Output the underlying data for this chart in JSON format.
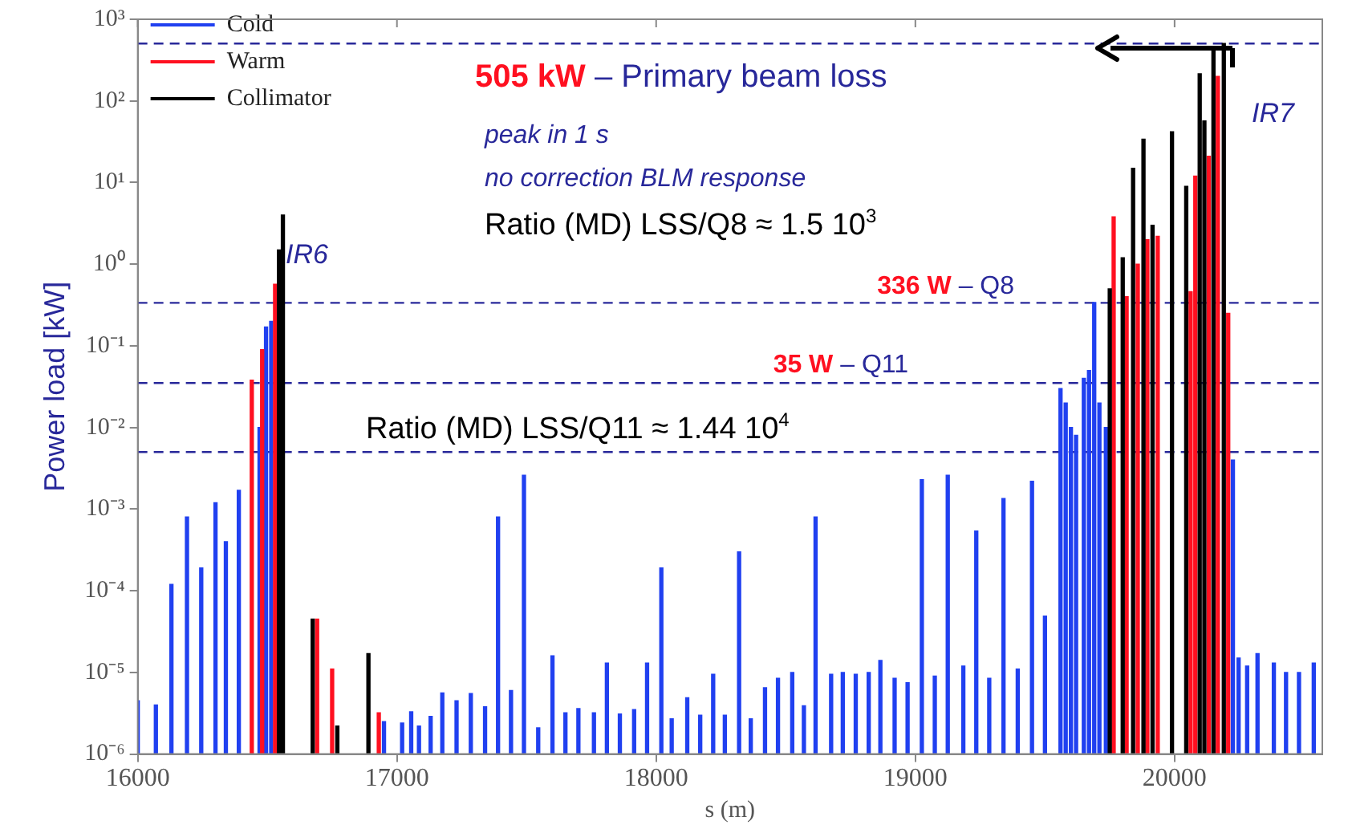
{
  "chart_data": {
    "type": "bar",
    "xlabel": "s (m)",
    "ylabel": "Power load [kW]",
    "xlim": [
      16000,
      20570
    ],
    "xticks": [
      16000,
      17000,
      18000,
      19000,
      20000
    ],
    "ylim": [
      1e-06,
      1000
    ],
    "log": "y",
    "yticks": [
      {
        "value": 1e-06,
        "label": "10⁻⁶"
      },
      {
        "value": 1e-05,
        "label": "10⁻⁵"
      },
      {
        "value": 0.0001,
        "label": "10⁻⁴"
      },
      {
        "value": 0.001,
        "label": "10⁻³"
      },
      {
        "value": 0.01,
        "label": "10⁻²"
      },
      {
        "value": 0.1,
        "label": "10⁻¹"
      },
      {
        "value": 1,
        "label": "10⁰"
      },
      {
        "value": 10,
        "label": "10¹"
      },
      {
        "value": 100,
        "label": "10²"
      },
      {
        "value": 1000,
        "label": "10³"
      }
    ],
    "legend": "top left",
    "series": [
      {
        "name": "Cold",
        "color": "#2040f0",
        "x": [
          16000,
          16070,
          16130,
          16190,
          16245,
          16300,
          16340,
          16390,
          16470,
          16495,
          16515,
          16950,
          17020,
          17055,
          17085,
          17130,
          17175,
          17230,
          17285,
          17340,
          17390,
          17440,
          17490,
          17545,
          17600,
          17650,
          17700,
          17760,
          17810,
          17860,
          17915,
          17965,
          18020,
          18060,
          18120,
          18170,
          18220,
          18265,
          18320,
          18365,
          18420,
          18470,
          18525,
          18570,
          18615,
          18675,
          18720,
          18770,
          18820,
          18865,
          18920,
          18970,
          19025,
          19075,
          19125,
          19185,
          19235,
          19285,
          19340,
          19395,
          19450,
          19500,
          19560,
          19580,
          19600,
          19620,
          19650,
          19670,
          19690,
          19710,
          19735,
          20225,
          20247,
          20280,
          20320,
          20383,
          20430,
          20480,
          20537
        ],
        "values": [
          4.5e-06,
          4e-06,
          0.00012,
          0.0008,
          0.00019,
          0.0012,
          0.0004,
          0.0017,
          0.01,
          0.17,
          0.2,
          2.5e-06,
          2.4e-06,
          3.3e-06,
          2.2e-06,
          2.9e-06,
          5.6e-06,
          4.5e-06,
          5.5e-06,
          3.8e-06,
          0.0008,
          6e-06,
          0.0026,
          2.1e-06,
          1.6e-05,
          3.2e-06,
          3.6e-06,
          3.2e-06,
          1.3e-05,
          3.1e-06,
          3.5e-06,
          1.3e-05,
          0.00019,
          2.7e-06,
          4.9e-06,
          3e-06,
          9.5e-06,
          3e-06,
          0.0003,
          2.7e-06,
          6.5e-06,
          8.5e-06,
          1e-05,
          3.9e-06,
          0.0008,
          9.5e-06,
          1e-05,
          9.5e-06,
          1e-05,
          1.4e-05,
          8.5e-06,
          7.5e-06,
          0.0023,
          9e-06,
          0.0026,
          1.2e-05,
          0.00054,
          8.5e-06,
          0.00135,
          1.1e-05,
          0.0022,
          4.9e-05,
          0.03,
          0.02,
          0.01,
          0.008,
          0.04,
          0.05,
          0.34,
          0.02,
          0.01,
          0.004,
          1.5e-05,
          1.2e-05,
          1.7e-05,
          1.3e-05,
          1e-05,
          1e-05,
          1.3e-05
        ]
      },
      {
        "name": "Warm",
        "color": "#ff1020",
        "x": [
          16440,
          16480,
          16530,
          16692,
          16750,
          16930,
          19765,
          19815,
          19858,
          19895,
          19935,
          20062,
          20080,
          20132,
          20167,
          20207
        ],
        "values": [
          0.038,
          0.09,
          0.57,
          4.5e-05,
          1.1e-05,
          3.2e-06,
          3.8,
          0.4,
          1,
          2,
          2.2,
          0.46,
          12,
          21,
          200,
          0.25
        ]
      },
      {
        "name": "Collimator",
        "color": "#000000",
        "x": [
          16545,
          16560,
          16675,
          16770,
          16890,
          19750,
          19800,
          19840,
          19880,
          19915,
          19990,
          20045,
          20097,
          20115,
          20150,
          20190
        ],
        "values": [
          1.5,
          4,
          4.5e-05,
          2.2e-06,
          1.7e-05,
          0.5,
          1.2,
          15,
          34,
          3,
          42,
          9,
          215,
          57,
          445,
          505
        ]
      }
    ],
    "ref_lines": [
      {
        "axis": "y",
        "value": 505,
        "label": "505 kW – Primary beam loss",
        "color": "#28289a",
        "line_style": "dashed"
      },
      {
        "axis": "y",
        "value": 0.336,
        "label": "336 W – Q8",
        "color": "#28289a",
        "line_style": "dashed"
      },
      {
        "axis": "y",
        "value": 0.035,
        "label": "35 W – Q11",
        "color": "#28289a",
        "line_style": "dashed"
      },
      {
        "axis": "y",
        "value": 0.005,
        "label": null,
        "color": "#28289a",
        "line_style": "dashed"
      }
    ],
    "annotations": [
      "IR6",
      "IR7",
      "peak in 1 s",
      "no correction BLM response",
      "Ratio (MD) LSS/Q8 ≈ 1.5 10$^{3}$",
      "Ratio (MD) LSS/Q11 ≈ 1.44 10$^{4}$"
    ]
  }
}
